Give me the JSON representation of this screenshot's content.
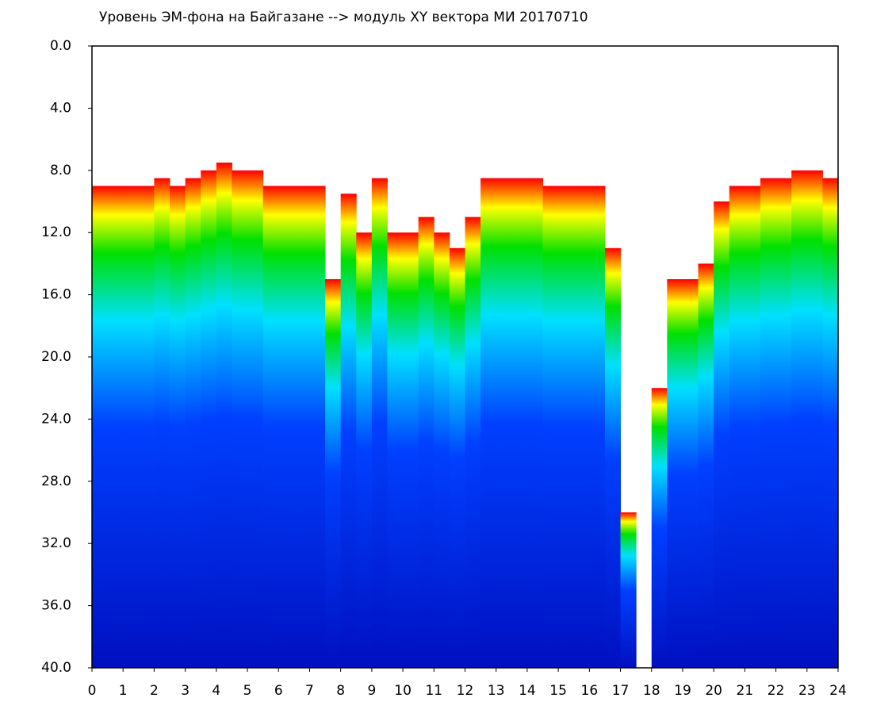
{
  "chart_data": {
    "type": "spectrogram",
    "title": "Уровень ЭМ-фона на Байгазане   -->  модуль XY вектора МИ   20170710",
    "x": [
      0.25,
      0.75,
      1.25,
      1.75,
      2.25,
      2.75,
      3.25,
      3.75,
      4.25,
      4.75,
      5.25,
      5.75,
      6.25,
      6.75,
      7.25,
      7.75,
      8.25,
      8.75,
      9.25,
      9.75,
      10.25,
      10.75,
      11.25,
      11.75,
      12.25,
      12.75,
      13.25,
      13.75,
      14.25,
      14.75,
      15.25,
      15.75,
      16.25,
      16.75,
      17.25,
      17.75,
      18.25,
      18.75,
      19.25,
      19.75,
      20.25,
      20.75,
      21.25,
      21.75,
      22.25,
      22.75,
      23.25,
      23.75
    ],
    "values": [
      9,
      9,
      9,
      9,
      8.5,
      9,
      8.5,
      8,
      7.5,
      8,
      8,
      9,
      9,
      9,
      9,
      15,
      9.5,
      12,
      8.5,
      12,
      12,
      11,
      12,
      13,
      11,
      8.5,
      8.5,
      8.5,
      8.5,
      9,
      9,
      9,
      9,
      13,
      30,
      null,
      22,
      15,
      15,
      14,
      10,
      9,
      9,
      8.5,
      8.5,
      8,
      8,
      8.5
    ],
    "colormap": [
      "#ff0000",
      "#ffff00",
      "#00e000",
      "#00e0ff",
      "#0040ff",
      "#0010c0"
    ],
    "xlim": [
      0,
      24
    ],
    "xticks": [
      0,
      1,
      2,
      3,
      4,
      5,
      6,
      7,
      8,
      9,
      10,
      11,
      12,
      13,
      14,
      15,
      16,
      17,
      18,
      19,
      20,
      21,
      22,
      23,
      24
    ],
    "ylim": [
      40,
      0
    ],
    "y_inverted": true,
    "yticks": [
      {
        "value": 0,
        "label": "0.0"
      },
      {
        "value": 4,
        "label": "4.0"
      },
      {
        "value": 8,
        "label": "8.0"
      },
      {
        "value": 12,
        "label": "12.0"
      },
      {
        "value": 16,
        "label": "16.0"
      },
      {
        "value": 20,
        "label": "20.0"
      },
      {
        "value": 24,
        "label": "24.0"
      },
      {
        "value": 28,
        "label": "28.0"
      },
      {
        "value": 32,
        "label": "32.0"
      },
      {
        "value": 36,
        "label": "36.0"
      },
      {
        "value": 40,
        "label": "40.0"
      }
    ]
  }
}
